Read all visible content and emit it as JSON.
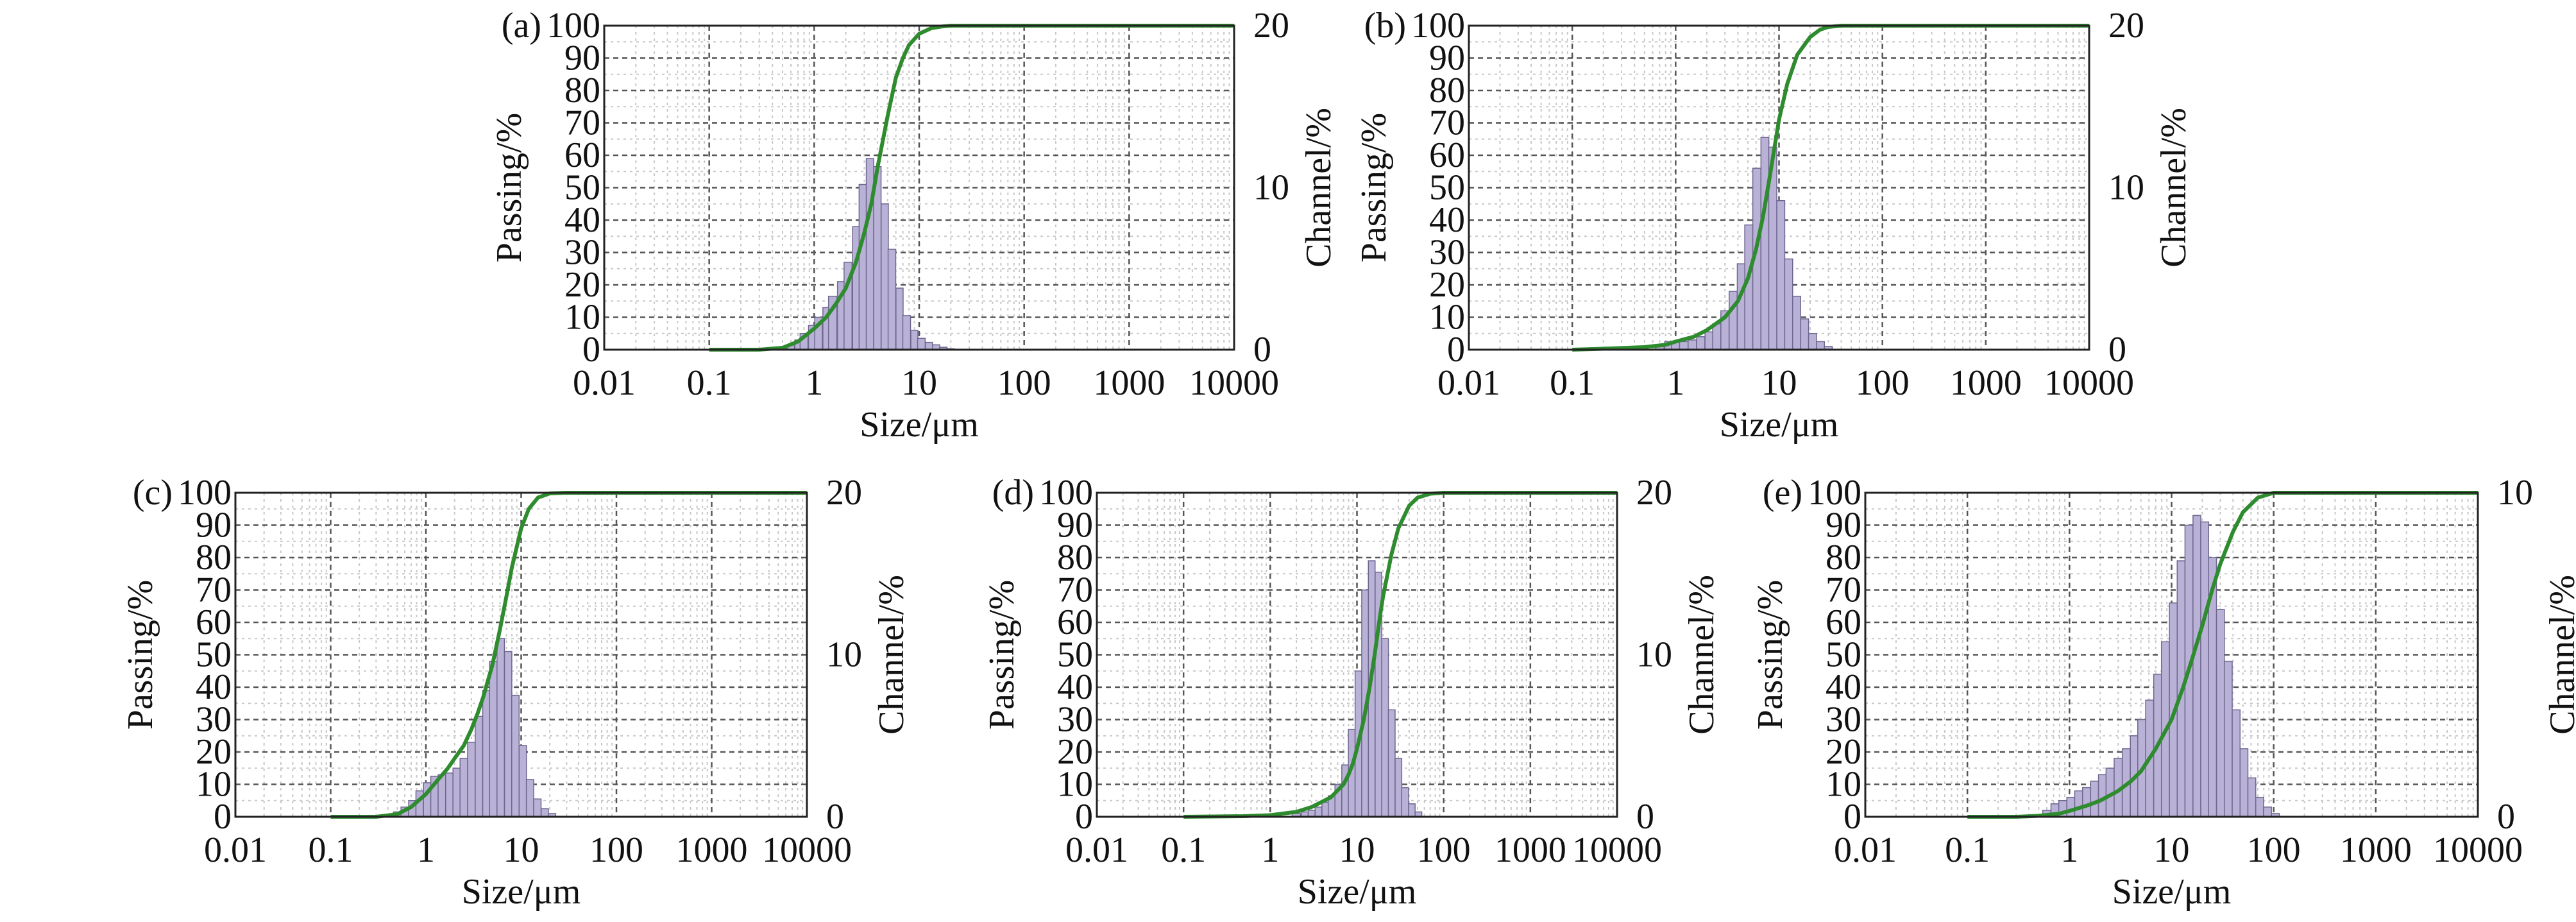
{
  "figure": {
    "panels": [
      "a",
      "b",
      "c",
      "d",
      "e"
    ]
  },
  "chart_data": [
    {
      "panel_label": "(a)",
      "type": "bar",
      "xlabel": "Size/μm",
      "ylabel_left": "Passing/%",
      "ylabel_right": "Channel/%",
      "x_scale": "log",
      "xlim": [
        0.01,
        10000
      ],
      "x_ticks": [
        "0.01",
        "0.1",
        "1",
        "10",
        "100",
        "1000",
        "10000"
      ],
      "ylim_left": [
        0,
        100
      ],
      "y_ticks_left": [
        "0",
        "10",
        "20",
        "30",
        "40",
        "50",
        "60",
        "70",
        "80",
        "90",
        "100"
      ],
      "ylim_right": [
        0,
        20
      ],
      "y_ticks_right": [
        "0",
        "10",
        "20"
      ],
      "grid": true,
      "colors": {
        "bars": "#b9b2d6",
        "bar_edge": "#6e6790",
        "curve": "#2e8b2e"
      },
      "series": [
        {
          "kind": "histogram",
          "axis": "right",
          "x": [
            0.5,
            0.6,
            0.7,
            0.8,
            0.95,
            1.1,
            1.3,
            1.5,
            1.8,
            2.1,
            2.5,
            2.9,
            3.4,
            4.0,
            4.7,
            5.5,
            6.5,
            7.6,
            9.0,
            10.5,
            12.4,
            14.5,
            17.0,
            20.0
          ],
          "values": [
            0.1,
            0.3,
            0.6,
            1.0,
            1.5,
            2.0,
            2.6,
            3.3,
            4.2,
            5.4,
            7.6,
            10.2,
            11.8,
            11.3,
            9.0,
            6.2,
            3.8,
            2.1,
            1.2,
            0.7,
            0.45,
            0.3,
            0.15,
            0.05
          ]
        },
        {
          "kind": "cumulative",
          "axis": "left",
          "x": [
            0.1,
            0.3,
            0.5,
            0.7,
            1.0,
            1.3,
            1.6,
            2.0,
            2.5,
            3.0,
            3.5,
            4.0,
            5.0,
            6.0,
            7.0,
            8.0,
            10.0,
            13.0,
            16.0,
            20.0,
            30.0,
            10000
          ],
          "values": [
            0,
            0,
            0.6,
            2.5,
            6.5,
            10,
            14,
            19,
            27,
            36,
            45,
            56,
            72,
            84,
            90,
            94,
            97.5,
            99.2,
            99.7,
            100,
            100,
            100
          ]
        }
      ]
    },
    {
      "panel_label": "(b)",
      "type": "bar",
      "xlabel": "Size/μm",
      "ylabel_left": "Passing/%",
      "ylabel_right": "Channel/%",
      "x_scale": "log",
      "xlim": [
        0.01,
        10000
      ],
      "x_ticks": [
        "0.01",
        "0.1",
        "1",
        "10",
        "100",
        "1000",
        "10000"
      ],
      "ylim_left": [
        0,
        100
      ],
      "y_ticks_left": [
        "0",
        "10",
        "20",
        "30",
        "40",
        "50",
        "60",
        "70",
        "80",
        "90",
        "100"
      ],
      "ylim_right": [
        0,
        20
      ],
      "y_ticks_right": [
        "0",
        "10",
        "20"
      ],
      "grid": true,
      "colors": {
        "bars": "#b9b2d6",
        "bar_edge": "#6e6790",
        "curve": "#2e8b2e"
      },
      "series": [
        {
          "kind": "histogram",
          "axis": "right",
          "x": [
            0.7,
            0.85,
            1.0,
            1.2,
            1.45,
            1.75,
            2.1,
            2.5,
            3.0,
            3.6,
            4.3,
            5.1,
            6.1,
            7.3,
            8.7,
            10.4,
            12.4,
            14.8,
            17.7,
            21.1,
            25.2,
            30.0
          ],
          "values": [
            0.3,
            0.5,
            0.5,
            0.5,
            0.6,
            0.8,
            1.1,
            1.6,
            2.4,
            3.6,
            5.3,
            7.7,
            11.2,
            13.1,
            12.5,
            9.2,
            5.6,
            3.3,
            1.9,
            1.0,
            0.5,
            0.2
          ]
        },
        {
          "kind": "cumulative",
          "axis": "left",
          "x": [
            0.1,
            0.2,
            0.5,
            0.8,
            1.0,
            1.5,
            2.0,
            3.0,
            4.0,
            5.0,
            6.0,
            7.0,
            8.0,
            9.0,
            10.0,
            12.0,
            15.0,
            20.0,
            25.0,
            30.0,
            40.0,
            10000
          ],
          "values": [
            0,
            0.3,
            0.8,
            1.5,
            2.5,
            4,
            6,
            10,
            15,
            22,
            31,
            41,
            52,
            62,
            71,
            82,
            91,
            96.5,
            98.8,
            99.6,
            100,
            100
          ]
        }
      ]
    },
    {
      "panel_label": "(c)",
      "type": "bar",
      "xlabel": "Size/μm",
      "ylabel_left": "Passing/%",
      "ylabel_right": "Channel/%",
      "x_scale": "log",
      "xlim": [
        0.01,
        10000
      ],
      "x_ticks": [
        "0.01",
        "0.1",
        "1",
        "10",
        "100",
        "1000",
        "10000"
      ],
      "ylim_left": [
        0,
        100
      ],
      "y_ticks_left": [
        "0",
        "10",
        "20",
        "30",
        "40",
        "50",
        "60",
        "70",
        "80",
        "90",
        "100"
      ],
      "ylim_right": [
        0,
        20
      ],
      "y_ticks_right": [
        "0",
        "10",
        "20"
      ],
      "grid": true,
      "colors": {
        "bars": "#b9b2d6",
        "bar_edge": "#6e6790",
        "curve": "#2e8b2e"
      },
      "series": [
        {
          "kind": "histogram",
          "axis": "right",
          "x": [
            0.5,
            0.6,
            0.72,
            0.86,
            1.03,
            1.23,
            1.47,
            1.76,
            2.1,
            2.5,
            3.0,
            3.6,
            4.3,
            5.1,
            6.1,
            7.3,
            8.7,
            10.4,
            12.4,
            14.8,
            17.7,
            21.1
          ],
          "values": [
            0.3,
            0.6,
            1.0,
            1.6,
            2.1,
            2.5,
            2.6,
            2.7,
            3.0,
            3.6,
            4.6,
            6.2,
            7.8,
            9.6,
            11.0,
            10.2,
            7.5,
            4.4,
            2.3,
            1.1,
            0.5,
            0.2
          ]
        },
        {
          "kind": "cumulative",
          "axis": "left",
          "x": [
            0.1,
            0.3,
            0.5,
            0.7,
            1.0,
            1.3,
            1.7,
            2.0,
            2.5,
            3.0,
            3.5,
            4.0,
            5.0,
            6.0,
            7.0,
            8.0,
            10.0,
            12.0,
            15.0,
            20.0,
            30.0,
            10000
          ],
          "values": [
            0,
            0,
            0.8,
            3,
            7,
            11,
            15,
            18,
            22,
            27,
            32,
            37,
            47,
            58,
            68,
            77,
            89,
            95,
            98.5,
            99.8,
            100,
            100
          ]
        }
      ]
    },
    {
      "panel_label": "(d)",
      "type": "bar",
      "xlabel": "Size/μm",
      "ylabel_left": "Passing/%",
      "ylabel_right": "Channel/%",
      "x_scale": "log",
      "xlim": [
        0.01,
        10000
      ],
      "x_ticks": [
        "0.01",
        "0.1",
        "1",
        "10",
        "100",
        "1000",
        "10000"
      ],
      "ylim_left": [
        0,
        100
      ],
      "y_ticks_left": [
        "0",
        "10",
        "20",
        "30",
        "40",
        "50",
        "60",
        "70",
        "80",
        "90",
        "100"
      ],
      "ylim_right": [
        0,
        20
      ],
      "y_ticks_right": [
        "0",
        "10",
        "20"
      ],
      "grid": true,
      "colors": {
        "bars": "#b9b2d6",
        "bar_edge": "#6e6790",
        "curve": "#2e8b2e"
      },
      "series": [
        {
          "kind": "histogram",
          "axis": "right",
          "x": [
            2.0,
            2.5,
            3.0,
            3.6,
            4.3,
            5.1,
            6.1,
            7.3,
            8.7,
            10.4,
            12.4,
            14.8,
            17.7,
            21.1,
            25.2,
            30.1,
            35.9,
            42.9,
            51.2
          ],
          "values": [
            0.2,
            0.3,
            0.4,
            0.6,
            0.9,
            1.3,
            2.0,
            3.2,
            5.4,
            9.0,
            14.0,
            15.8,
            15.1,
            11.0,
            6.6,
            3.6,
            1.8,
            0.8,
            0.3
          ]
        },
        {
          "kind": "cumulative",
          "axis": "left",
          "x": [
            0.1,
            0.5,
            1.0,
            2.0,
            3.0,
            5.0,
            7.0,
            8.0,
            9.0,
            10.0,
            12.0,
            14.0,
            16.0,
            18.0,
            20.0,
            25.0,
            30.0,
            40.0,
            50.0,
            70.0,
            100.0,
            10000
          ],
          "values": [
            0,
            0.2,
            0.5,
            1.5,
            3,
            6,
            10,
            13,
            16.5,
            21,
            30,
            40,
            50,
            60,
            68,
            81,
            89,
            96,
            98.5,
            99.7,
            100,
            100
          ]
        }
      ]
    },
    {
      "panel_label": "(e)",
      "type": "bar",
      "xlabel": "Size/μm",
      "ylabel_left": "Passing/%",
      "ylabel_right": "Channel/%",
      "x_scale": "log",
      "xlim": [
        0.01,
        10000
      ],
      "x_ticks": [
        "0.01",
        "0.1",
        "1",
        "10",
        "100",
        "1000",
        "10000"
      ],
      "ylim_left": [
        0,
        100
      ],
      "y_ticks_left": [
        "0",
        "10",
        "20",
        "30",
        "40",
        "50",
        "60",
        "70",
        "80",
        "90",
        "100"
      ],
      "ylim_right": [
        0,
        10
      ],
      "y_ticks_right": [
        "0",
        "10"
      ],
      "grid": true,
      "colors": {
        "bars": "#b9b2d6",
        "bar_edge": "#6e6790",
        "curve": "#2e8b2e"
      },
      "series": [
        {
          "kind": "histogram",
          "axis": "right",
          "x": [
            0.6,
            0.72,
            0.86,
            1.03,
            1.23,
            1.47,
            1.76,
            2.1,
            2.5,
            3.0,
            3.6,
            4.3,
            5.1,
            6.1,
            7.3,
            8.7,
            10.4,
            12.4,
            14.8,
            17.7,
            21.1,
            25.2,
            30.1,
            35.9,
            42.9,
            51.2,
            61.1,
            72.9,
            87.0,
            103.9
          ],
          "values": [
            0.2,
            0.4,
            0.5,
            0.6,
            0.8,
            0.9,
            1.1,
            1.3,
            1.5,
            1.8,
            2.1,
            2.5,
            3.0,
            3.6,
            4.4,
            5.4,
            6.6,
            7.9,
            9.0,
            9.3,
            9.1,
            8.0,
            6.4,
            4.8,
            3.3,
            2.1,
            1.2,
            0.6,
            0.3,
            0.1
          ]
        },
        {
          "kind": "cumulative",
          "axis": "left",
          "x": [
            0.1,
            0.3,
            0.5,
            0.8,
            1.0,
            1.5,
            2.0,
            3.0,
            4.0,
            5.0,
            7.0,
            10.0,
            13.0,
            16.0,
            20.0,
            25.0,
            30.0,
            40.0,
            50.0,
            70.0,
            100.0,
            10000
          ],
          "values": [
            0,
            0,
            0.3,
            1,
            1.8,
            3.5,
            5,
            8,
            11,
            14,
            21,
            30,
            40,
            49,
            59,
            70,
            78,
            88,
            94,
            98.5,
            100,
            100
          ]
        }
      ]
    }
  ]
}
